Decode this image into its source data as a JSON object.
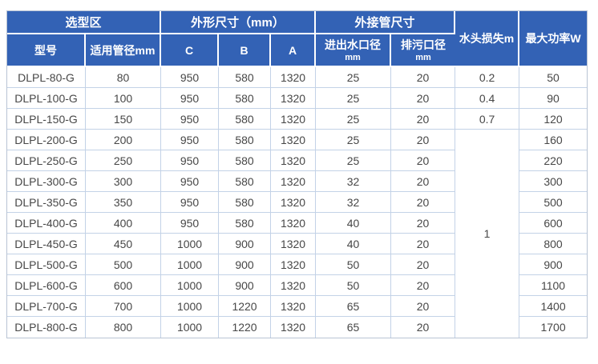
{
  "colors": {
    "header_bg": "#3362b5",
    "header_text": "#ffffff",
    "header_divider": "#ffffff",
    "grid_line": "#c3d2e7",
    "outer_border": "#b9c4d4",
    "cell_text": "#474747",
    "cell_bg": "#ffffff"
  },
  "table": {
    "group_headers": [
      {
        "label": "选型区",
        "colspan": "2"
      },
      {
        "label": "外形尺寸（mm）",
        "colspan": "3"
      },
      {
        "label": "外接管尺寸",
        "colspan": "2"
      }
    ],
    "span_headers": [
      {
        "label": "水头损失m"
      },
      {
        "label": "最大功率W"
      }
    ],
    "sub_headers": [
      {
        "label": "型号"
      },
      {
        "label": "适用管径mm"
      },
      {
        "label": "C"
      },
      {
        "label": "B"
      },
      {
        "label": "A"
      },
      {
        "label": "进出水口径",
        "unit": "mm"
      },
      {
        "label": "排污口径",
        "unit": "mm"
      }
    ],
    "merged_head_loss": {
      "value": "1",
      "start_index": 3,
      "row_count": 10
    },
    "rows": [
      {
        "model": "DLPL-80-G",
        "pipe_diameter": "80",
        "c": "950",
        "b": "580",
        "a": "1320",
        "inlet_outlet": "25",
        "drain": "20",
        "head_loss": "0.2",
        "max_power": "50"
      },
      {
        "model": "DLPL-100-G",
        "pipe_diameter": "100",
        "c": "950",
        "b": "580",
        "a": "1320",
        "inlet_outlet": "25",
        "drain": "20",
        "head_loss": "0.4",
        "max_power": "90"
      },
      {
        "model": "DLPL-150-G",
        "pipe_diameter": "150",
        "c": "950",
        "b": "580",
        "a": "1320",
        "inlet_outlet": "25",
        "drain": "20",
        "head_loss": "0.7",
        "max_power": "120"
      },
      {
        "model": "DLPL-200-G",
        "pipe_diameter": "200",
        "c": "950",
        "b": "580",
        "a": "1320",
        "inlet_outlet": "25",
        "drain": "20",
        "max_power": "160"
      },
      {
        "model": "DLPL-250-G",
        "pipe_diameter": "250",
        "c": "950",
        "b": "580",
        "a": "1320",
        "inlet_outlet": "25",
        "drain": "20",
        "max_power": "220"
      },
      {
        "model": "DLPL-300-G",
        "pipe_diameter": "300",
        "c": "950",
        "b": "580",
        "a": "1320",
        "inlet_outlet": "32",
        "drain": "20",
        "max_power": "300"
      },
      {
        "model": "DLPL-350-G",
        "pipe_diameter": "350",
        "c": "950",
        "b": "580",
        "a": "1320",
        "inlet_outlet": "32",
        "drain": "20",
        "max_power": "500"
      },
      {
        "model": "DLPL-400-G",
        "pipe_diameter": "400",
        "c": "950",
        "b": "580",
        "a": "1320",
        "inlet_outlet": "40",
        "drain": "20",
        "max_power": "600"
      },
      {
        "model": "DLPL-450-G",
        "pipe_diameter": "450",
        "c": "1000",
        "b": "900",
        "a": "1320",
        "inlet_outlet": "40",
        "drain": "20",
        "max_power": "800"
      },
      {
        "model": "DLPL-500-G",
        "pipe_diameter": "500",
        "c": "1000",
        "b": "900",
        "a": "1320",
        "inlet_outlet": "50",
        "drain": "20",
        "max_power": "900"
      },
      {
        "model": "DLPL-600-G",
        "pipe_diameter": "600",
        "c": "1000",
        "b": "900",
        "a": "1320",
        "inlet_outlet": "50",
        "drain": "20",
        "max_power": "1100"
      },
      {
        "model": "DLPL-700-G",
        "pipe_diameter": "700",
        "c": "1000",
        "b": "1220",
        "a": "1320",
        "inlet_outlet": "65",
        "drain": "20",
        "max_power": "1400"
      },
      {
        "model": "DLPL-800-G",
        "pipe_diameter": "800",
        "c": "1000",
        "b": "1220",
        "a": "1320",
        "inlet_outlet": "65",
        "drain": "20",
        "max_power": "1700"
      }
    ]
  }
}
